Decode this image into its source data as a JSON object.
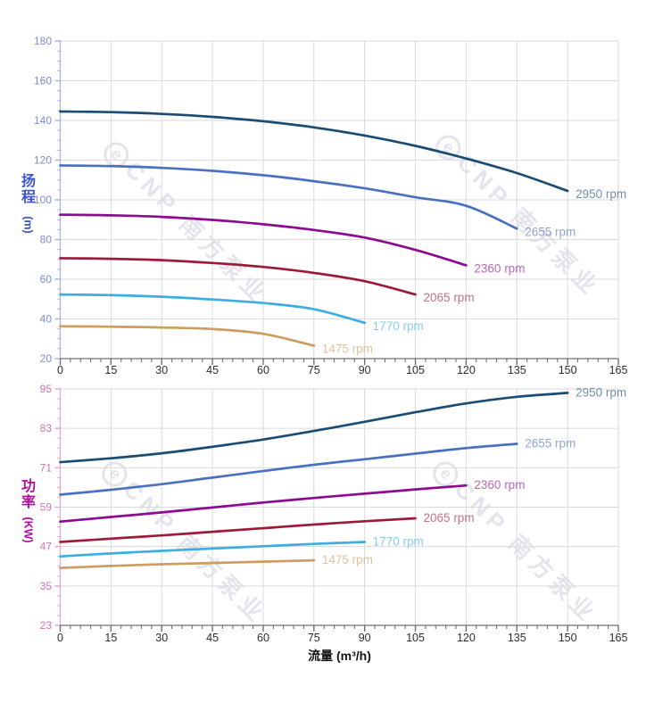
{
  "watermark": {
    "logo_letter": "e",
    "brand": "CNP 南方泵业",
    "color": "#e4e4ec"
  },
  "x_axis_title": "流量 (m³/h)",
  "chart_data": [
    {
      "type": "line",
      "name": "pump-head-curves",
      "title": "",
      "xlabel": "流量 (m³/h)",
      "ylabel": "扬程 (m)",
      "ylabel_chars": [
        "扬",
        "程"
      ],
      "ylabel_unit": "(m)",
      "xlim": [
        0,
        165
      ],
      "ylim": [
        20,
        180
      ],
      "x_ticks": [
        0,
        15,
        30,
        45,
        60,
        75,
        90,
        105,
        120,
        135,
        150,
        165
      ],
      "y_ticks": [
        20,
        40,
        60,
        80,
        100,
        120,
        140,
        160,
        180
      ],
      "x_minor_step": 3,
      "y_minor_step": 5,
      "grid": true,
      "grid_color": "#dadada",
      "legend_position": "labels-at-curve-ends",
      "y_axis": {
        "label_color": "#7d8bd8",
        "line_color": "#aab3e6",
        "title_color": "#3c55cc"
      },
      "x_axis": {
        "label_color": "#2d2d2d",
        "line_color": "#707070"
      },
      "series": [
        {
          "name": "2950 rpm",
          "color": "#1b4d74",
          "x": [
            0,
            15,
            30,
            45,
            60,
            75,
            90,
            105,
            120,
            135,
            150
          ],
          "y": [
            144.5,
            144.2,
            143.3,
            141.8,
            139.6,
            136.5,
            132.4,
            127.2,
            120.8,
            113.5,
            104.5
          ]
        },
        {
          "name": "2655 rpm",
          "color": "#4a70c2",
          "x": [
            0,
            15,
            30,
            45,
            60,
            75,
            90,
            105,
            120,
            135
          ],
          "y": [
            117.3,
            117.0,
            116.1,
            114.6,
            112.4,
            109.4,
            105.8,
            101.3,
            97.0,
            85.5
          ]
        },
        {
          "name": "2360 rpm",
          "color": "#8d0b92",
          "x": [
            0,
            15,
            30,
            45,
            60,
            75,
            90,
            105,
            120
          ],
          "y": [
            92.5,
            92.2,
            91.4,
            89.9,
            87.7,
            84.8,
            81.0,
            74.8,
            67.0
          ]
        },
        {
          "name": "2065 rpm",
          "color": "#9c1b39",
          "x": [
            0,
            15,
            30,
            45,
            60,
            75,
            90,
            105
          ],
          "y": [
            70.6,
            70.3,
            69.6,
            68.2,
            66.2,
            63.2,
            59.0,
            52.3
          ]
        },
        {
          "name": "1770 rpm",
          "color": "#3dade3",
          "x": [
            0,
            15,
            30,
            45,
            60,
            75,
            90
          ],
          "y": [
            52.3,
            52.0,
            51.2,
            49.8,
            48.0,
            44.9,
            38.0
          ]
        },
        {
          "name": "1475 rpm",
          "color": "#cd9d5f",
          "x": [
            0,
            15,
            30,
            45,
            60,
            75
          ],
          "y": [
            36.3,
            36.1,
            35.7,
            34.9,
            32.5,
            26.5
          ]
        }
      ]
    },
    {
      "type": "line",
      "name": "pump-power-curves",
      "title": "",
      "xlabel": "流量 (m³/h)",
      "ylabel": "功率 (KW)",
      "ylabel_chars": [
        "功",
        "率"
      ],
      "ylabel_unit": "(KW)",
      "xlim": [
        0,
        165
      ],
      "ylim": [
        23,
        95
      ],
      "x_ticks": [
        0,
        15,
        30,
        45,
        60,
        75,
        90,
        105,
        120,
        135,
        150,
        165
      ],
      "y_ticks": [
        23,
        35,
        47,
        59,
        71,
        83,
        95
      ],
      "x_minor_step": 3,
      "y_minor_step": 3,
      "grid": true,
      "grid_color": "#dadada",
      "legend_position": "labels-at-curve-ends",
      "y_axis": {
        "label_color": "#d073b5",
        "line_color": "#e3aad0",
        "title_color": "#b00f9f"
      },
      "x_axis": {
        "label_color": "#2d2d2d",
        "line_color": "#707070"
      },
      "series": [
        {
          "name": "2950 rpm",
          "color": "#1b4d74",
          "x": [
            0,
            15,
            30,
            45,
            60,
            75,
            90,
            105,
            120,
            135,
            150
          ],
          "y": [
            72.7,
            73.9,
            75.4,
            77.4,
            79.6,
            82.2,
            85.0,
            87.9,
            90.6,
            92.6,
            93.8
          ]
        },
        {
          "name": "2655 rpm",
          "color": "#4a70c2",
          "x": [
            0,
            15,
            30,
            45,
            60,
            75,
            90,
            105,
            120,
            135
          ],
          "y": [
            62.8,
            64.3,
            66.0,
            68.0,
            70.0,
            71.9,
            73.6,
            75.3,
            77.0,
            78.3
          ]
        },
        {
          "name": "2360 rpm",
          "color": "#8d0b92",
          "x": [
            0,
            15,
            30,
            45,
            60,
            75,
            90,
            105,
            120
          ],
          "y": [
            54.6,
            56.0,
            57.4,
            58.9,
            60.4,
            61.8,
            63.1,
            64.4,
            65.6
          ]
        },
        {
          "name": "2065 rpm",
          "color": "#9c1b39",
          "x": [
            0,
            15,
            30,
            45,
            60,
            75,
            90,
            105
          ],
          "y": [
            48.4,
            49.4,
            50.4,
            51.5,
            52.6,
            53.7,
            54.7,
            55.6
          ]
        },
        {
          "name": "1770 rpm",
          "color": "#3dade3",
          "x": [
            0,
            15,
            30,
            45,
            60,
            75,
            90
          ],
          "y": [
            44.0,
            44.9,
            45.7,
            46.4,
            47.1,
            47.8,
            48.4
          ]
        },
        {
          "name": "1475 rpm",
          "color": "#cd9d5f",
          "x": [
            0,
            15,
            30,
            45,
            60,
            75
          ],
          "y": [
            40.5,
            41.1,
            41.6,
            42.0,
            42.4,
            42.8
          ]
        }
      ]
    }
  ]
}
